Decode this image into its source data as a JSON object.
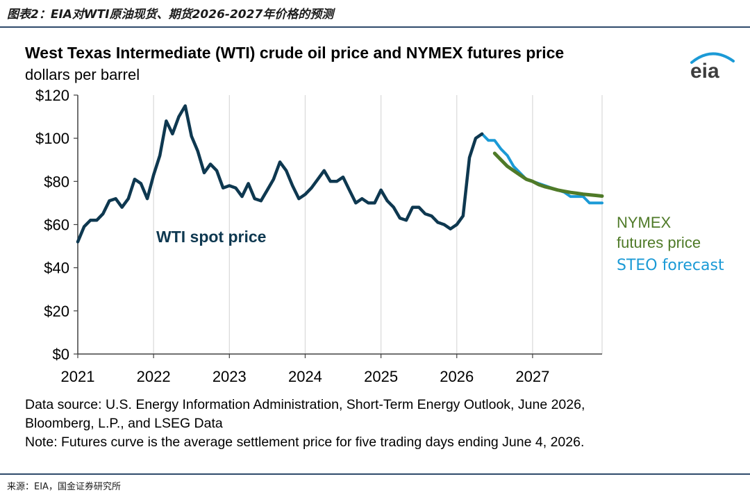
{
  "figure_caption": "图表2：EIA对WTI原油现货、期货2026-2027年价格的预测",
  "source_caption": "来源：EIA，国金证券研究所",
  "logo_text": "eia",
  "notes": {
    "line1": "Data source: U.S. Energy Information Administration, Short-Term Energy Outlook, June 2026,",
    "line2": "Bloomberg, L.P., and LSEG Data",
    "line3": "Note: Futures curve is the average settlement price for five trading days ending June 4, 2026."
  },
  "colors": {
    "spot": "#0e3850",
    "forecast": "#1b9ad6",
    "futures": "#4f7a28",
    "axis": "#404040",
    "grid": "#d9d9d9"
  },
  "chart_data": {
    "type": "line",
    "title": "West Texas Intermediate (WTI) crude oil price and NYMEX futures price",
    "subtitle": "dollars per barrel",
    "ylim": [
      0,
      120
    ],
    "y_ticks": [
      0,
      20,
      40,
      60,
      80,
      100,
      120
    ],
    "y_tick_labels": [
      "$0",
      "$20",
      "$40",
      "$60",
      "$80",
      "$100",
      "$120"
    ],
    "xlim": [
      2021,
      2027.917
    ],
    "x_ticks": [
      2021,
      2022,
      2023,
      2024,
      2025,
      2026,
      2027
    ],
    "x_tick_labels": [
      "2021",
      "2022",
      "2023",
      "2024",
      "2025",
      "2026",
      "2027"
    ],
    "grid": "vertical lines at years",
    "series": [
      {
        "name": "WTI spot price",
        "color_key": "spot",
        "points": [
          [
            2021.0,
            52
          ],
          [
            2021.083,
            59
          ],
          [
            2021.167,
            62
          ],
          [
            2021.25,
            62
          ],
          [
            2021.333,
            65
          ],
          [
            2021.417,
            71
          ],
          [
            2021.5,
            72
          ],
          [
            2021.583,
            68
          ],
          [
            2021.667,
            72
          ],
          [
            2021.75,
            81
          ],
          [
            2021.833,
            79
          ],
          [
            2021.917,
            72
          ],
          [
            2022.0,
            83
          ],
          [
            2022.083,
            92
          ],
          [
            2022.167,
            108
          ],
          [
            2022.25,
            102
          ],
          [
            2022.333,
            110
          ],
          [
            2022.417,
            115
          ],
          [
            2022.5,
            101
          ],
          [
            2022.583,
            94
          ],
          [
            2022.667,
            84
          ],
          [
            2022.75,
            88
          ],
          [
            2022.833,
            85
          ],
          [
            2022.917,
            77
          ],
          [
            2023.0,
            78
          ],
          [
            2023.083,
            77
          ],
          [
            2023.167,
            73
          ],
          [
            2023.25,
            79
          ],
          [
            2023.333,
            72
          ],
          [
            2023.417,
            71
          ],
          [
            2023.5,
            76
          ],
          [
            2023.583,
            81
          ],
          [
            2023.667,
            89
          ],
          [
            2023.75,
            85
          ],
          [
            2023.833,
            78
          ],
          [
            2023.917,
            72
          ],
          [
            2024.0,
            74
          ],
          [
            2024.083,
            77
          ],
          [
            2024.167,
            81
          ],
          [
            2024.25,
            85
          ],
          [
            2024.333,
            80
          ],
          [
            2024.417,
            80
          ],
          [
            2024.5,
            82
          ],
          [
            2024.583,
            76
          ],
          [
            2024.667,
            70
          ],
          [
            2024.75,
            72
          ],
          [
            2024.833,
            70
          ],
          [
            2024.917,
            70
          ],
          [
            2025.0,
            76
          ],
          [
            2025.083,
            71
          ],
          [
            2025.167,
            68
          ],
          [
            2025.25,
            63
          ],
          [
            2025.333,
            62
          ],
          [
            2025.417,
            68
          ],
          [
            2025.5,
            68
          ],
          [
            2025.583,
            65
          ],
          [
            2025.667,
            64
          ],
          [
            2025.75,
            61
          ],
          [
            2025.833,
            60
          ],
          [
            2025.917,
            58
          ],
          [
            2026.0,
            60
          ],
          [
            2026.083,
            64
          ],
          [
            2026.167,
            91
          ],
          [
            2026.25,
            100
          ],
          [
            2026.333,
            102
          ]
        ]
      },
      {
        "name": "STEO forecast",
        "color_key": "forecast",
        "points": [
          [
            2026.333,
            102
          ],
          [
            2026.417,
            99
          ],
          [
            2026.5,
            99
          ],
          [
            2026.583,
            95
          ],
          [
            2026.667,
            92
          ],
          [
            2026.75,
            87
          ],
          [
            2026.833,
            84
          ],
          [
            2026.917,
            81
          ],
          [
            2027.0,
            80
          ],
          [
            2027.083,
            79
          ],
          [
            2027.167,
            78
          ],
          [
            2027.25,
            77
          ],
          [
            2027.333,
            76
          ],
          [
            2027.417,
            75
          ],
          [
            2027.5,
            73
          ],
          [
            2027.583,
            73
          ],
          [
            2027.667,
            73
          ],
          [
            2027.75,
            70
          ],
          [
            2027.833,
            70
          ],
          [
            2027.917,
            70
          ]
        ]
      },
      {
        "name": "NYMEX futures price",
        "color_key": "futures",
        "points": [
          [
            2026.5,
            93
          ],
          [
            2026.583,
            90
          ],
          [
            2026.667,
            87
          ],
          [
            2026.75,
            85
          ],
          [
            2026.833,
            83
          ],
          [
            2026.917,
            81
          ],
          [
            2027.0,
            80
          ],
          [
            2027.083,
            78.5
          ],
          [
            2027.167,
            77.5
          ],
          [
            2027.25,
            76.8
          ],
          [
            2027.333,
            76
          ],
          [
            2027.417,
            75.4
          ],
          [
            2027.5,
            74.9
          ],
          [
            2027.583,
            74.5
          ],
          [
            2027.667,
            74.1
          ],
          [
            2027.75,
            73.8
          ],
          [
            2027.833,
            73.5
          ],
          [
            2027.917,
            73.2
          ]
        ]
      }
    ],
    "annotations": {
      "spot_label": "WTI spot price",
      "futures_label_line1": "NYMEX",
      "futures_label_line2": "futures price",
      "forecast_label": "STEO forecast"
    }
  }
}
